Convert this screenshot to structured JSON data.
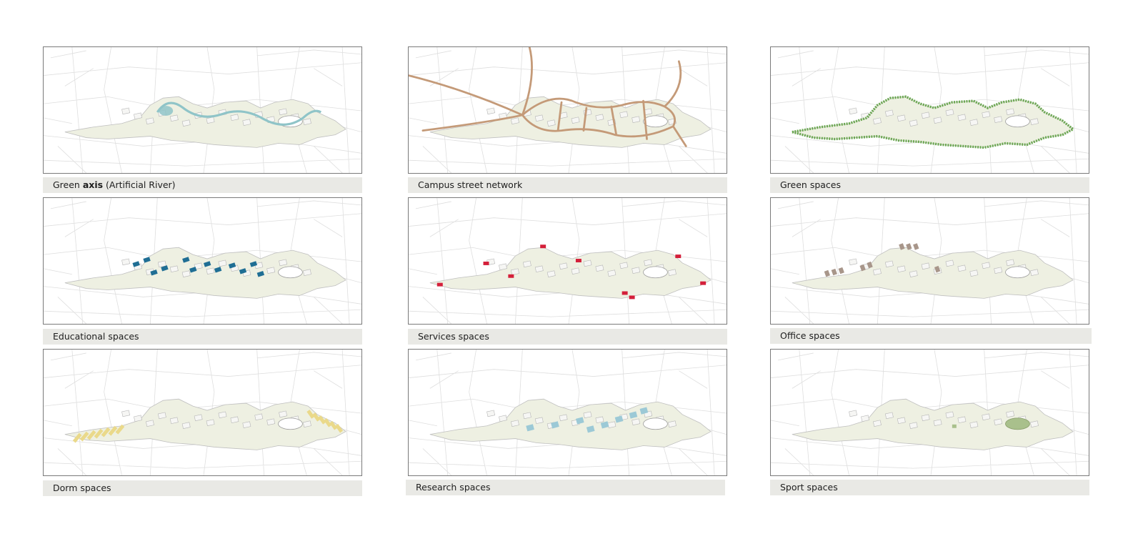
{
  "panels": [
    {
      "id": "green-axis",
      "caption_pre": "Green ",
      "caption_bold": "axis",
      "caption_post": " (Artificial River)",
      "highlight": "river",
      "color": "#8fc4c8"
    },
    {
      "id": "campus-street-network",
      "caption": "Campus street network",
      "highlight": "streets",
      "color": "#c49a78"
    },
    {
      "id": "green-spaces",
      "caption": "Green  spaces",
      "highlight": "green",
      "color": "#6aa84f"
    },
    {
      "id": "educational-spaces",
      "caption": "Educational spaces",
      "highlight": "educational",
      "color": "#1f6e94"
    },
    {
      "id": "services-spaces",
      "caption": "Services spaces",
      "highlight": "services",
      "color": "#d41f3a"
    },
    {
      "id": "office-spaces",
      "caption": "Office  spaces",
      "highlight": "office",
      "color": "#a8968a"
    },
    {
      "id": "dorm-spaces",
      "caption": "Dorm spaces",
      "highlight": "dorm",
      "color": "#ead98a"
    },
    {
      "id": "research-spaces",
      "caption": "Research spaces",
      "highlight": "research",
      "color": "#9cc9d6"
    },
    {
      "id": "sport-spaces",
      "caption": "Sport  spaces",
      "highlight": "sport",
      "color": "#a9c08c"
    }
  ]
}
